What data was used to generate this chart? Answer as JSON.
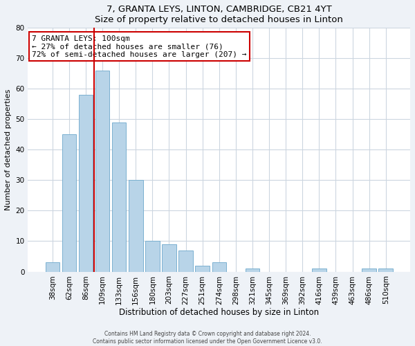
{
  "title": "7, GRANTA LEYS, LINTON, CAMBRIDGE, CB21 4YT",
  "subtitle": "Size of property relative to detached houses in Linton",
  "xlabel": "Distribution of detached houses by size in Linton",
  "ylabel": "Number of detached properties",
  "bar_labels": [
    "38sqm",
    "62sqm",
    "86sqm",
    "109sqm",
    "133sqm",
    "156sqm",
    "180sqm",
    "203sqm",
    "227sqm",
    "251sqm",
    "274sqm",
    "298sqm",
    "321sqm",
    "345sqm",
    "369sqm",
    "392sqm",
    "416sqm",
    "439sqm",
    "463sqm",
    "486sqm",
    "510sqm"
  ],
  "bar_values": [
    3,
    45,
    58,
    66,
    49,
    30,
    10,
    9,
    7,
    2,
    3,
    0,
    1,
    0,
    0,
    0,
    1,
    0,
    0,
    1,
    1
  ],
  "bar_color": "#b8d4e8",
  "bar_edge_color": "#7ab0d0",
  "marker_line_color": "#cc0000",
  "annotation_text": "7 GRANTA LEYS: 100sqm\n← 27% of detached houses are smaller (76)\n72% of semi-detached houses are larger (207) →",
  "annotation_box_edgecolor": "#cc0000",
  "annotation_box_facecolor": "#ffffff",
  "ylim": [
    0,
    80
  ],
  "yticks": [
    0,
    10,
    20,
    30,
    40,
    50,
    60,
    70,
    80
  ],
  "footer_line1": "Contains HM Land Registry data © Crown copyright and database right 2024.",
  "footer_line2": "Contains public sector information licensed under the Open Government Licence v3.0.",
  "bg_color": "#eef2f7",
  "plot_bg_color": "#ffffff",
  "grid_color": "#ccd6e0"
}
